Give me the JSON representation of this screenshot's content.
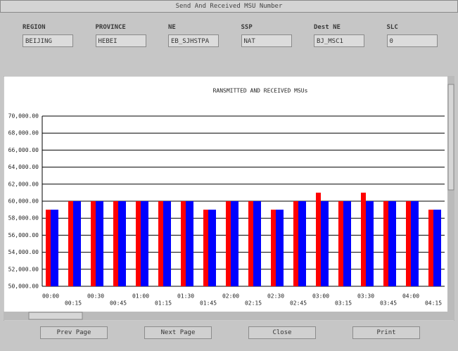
{
  "window": {
    "title": "Send And Received MSU Number"
  },
  "fields": [
    {
      "label": "REGION",
      "value": "BEIJING"
    },
    {
      "label": "PROVINCE",
      "value": "HEBEI"
    },
    {
      "label": "NE",
      "value": "EB_SJHSTPA"
    },
    {
      "label": "SSP",
      "value": "NAT"
    },
    {
      "label": "Dest NE",
      "value": "BJ_MSC1"
    },
    {
      "label": "SLC",
      "value": "0"
    }
  ],
  "chart_data": {
    "type": "bar",
    "title": "RANSMITTED AND RECEIVED MSUs",
    "categories": [
      "00:00",
      "00:15",
      "00:30",
      "00:45",
      "01:00",
      "01:15",
      "01:30",
      "01:45",
      "02:00",
      "02:15",
      "02:30",
      "02:45",
      "03:00",
      "03:15",
      "03:30",
      "03:45",
      "04:00",
      "04:15"
    ],
    "series": [
      {
        "color": "#ff0000",
        "values": [
          59000,
          60000,
          60000,
          60000,
          60000,
          60000,
          60000,
          59000,
          60000,
          60000,
          59000,
          60000,
          61000,
          60000,
          61000,
          60000,
          60000,
          59000
        ]
      },
      {
        "color": "#0000ff",
        "values": [
          59000,
          60000,
          60000,
          60000,
          60000,
          60000,
          60000,
          59000,
          60000,
          60000,
          59000,
          60000,
          60000,
          60000,
          60000,
          60000,
          60000,
          59000
        ]
      }
    ],
    "ylim": [
      50000,
      70000
    ],
    "yticks": [
      {
        "value": 50000,
        "label": "50,000.00"
      },
      {
        "value": 52000,
        "label": "52,000.00"
      },
      {
        "value": 54000,
        "label": "54,000.00"
      },
      {
        "value": 56000,
        "label": "56,000.00"
      },
      {
        "value": 58000,
        "label": "58,000.00"
      },
      {
        "value": 60000,
        "label": "60,000.00"
      },
      {
        "value": 62000,
        "label": "62,000.00"
      },
      {
        "value": 64000,
        "label": "64,000.00"
      },
      {
        "value": 66000,
        "label": "66,000.00"
      },
      {
        "value": 68000,
        "label": "68,000.00"
      },
      {
        "value": 70000,
        "label": "70,000.00"
      }
    ],
    "grid": true
  },
  "buttons": [
    "Prev Page",
    "Next Page",
    "Close",
    "Print"
  ]
}
